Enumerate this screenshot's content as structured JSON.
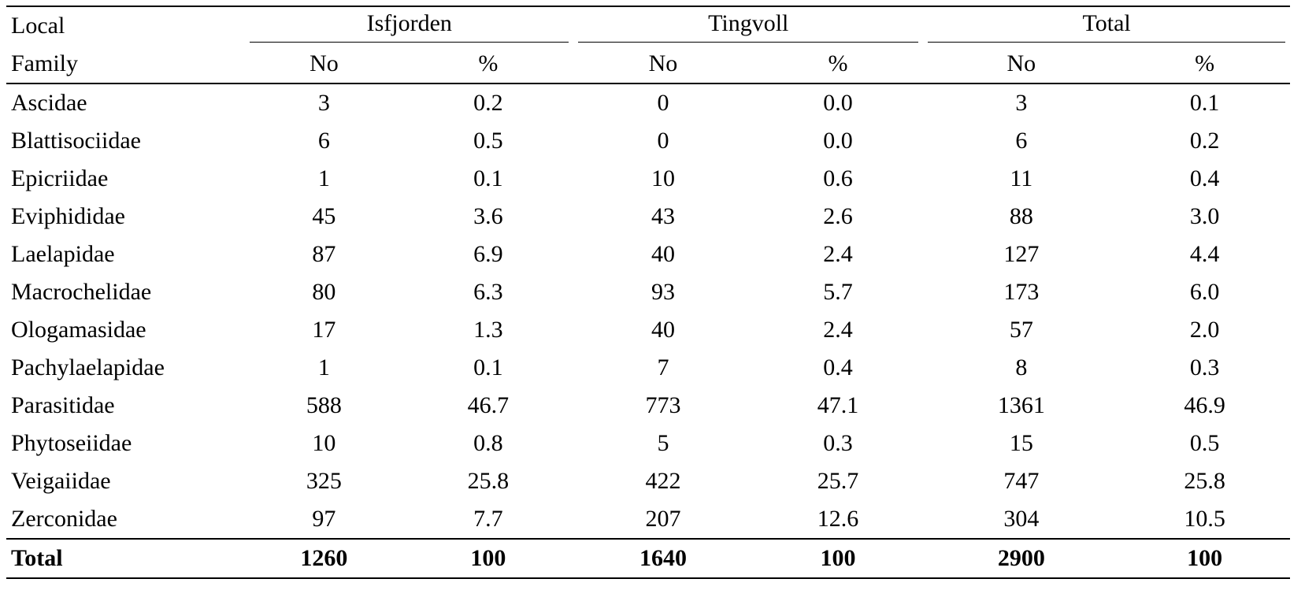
{
  "table": {
    "header": {
      "row_label_top": "Local",
      "row_label_bottom": "Family",
      "groups": [
        "Isfjorden",
        "Tingvoll",
        "Total"
      ],
      "subcolumns": [
        "No",
        "%",
        "No",
        "%",
        "No",
        "%"
      ]
    },
    "rows": [
      {
        "family": "Ascidae",
        "values": [
          "3",
          "0.2",
          "0",
          "0.0",
          "3",
          "0.1"
        ]
      },
      {
        "family": "Blattisociidae",
        "values": [
          "6",
          "0.5",
          "0",
          "0.0",
          "6",
          "0.2"
        ]
      },
      {
        "family": "Epicriidae",
        "values": [
          "1",
          "0.1",
          "10",
          "0.6",
          "11",
          "0.4"
        ]
      },
      {
        "family": "Eviphididae",
        "values": [
          "45",
          "3.6",
          "43",
          "2.6",
          "88",
          "3.0"
        ]
      },
      {
        "family": "Laelapidae",
        "values": [
          "87",
          "6.9",
          "40",
          "2.4",
          "127",
          "4.4"
        ]
      },
      {
        "family": "Macrochelidae",
        "values": [
          "80",
          "6.3",
          "93",
          "5.7",
          "173",
          "6.0"
        ]
      },
      {
        "family": "Ologamasidae",
        "values": [
          "17",
          "1.3",
          "40",
          "2.4",
          "57",
          "2.0"
        ]
      },
      {
        "family": "Pachylaelapidae",
        "values": [
          "1",
          "0.1",
          "7",
          "0.4",
          "8",
          "0.3"
        ]
      },
      {
        "family": "Parasitidae",
        "values": [
          "588",
          "46.7",
          "773",
          "47.1",
          "1361",
          "46.9"
        ]
      },
      {
        "family": "Phytoseiidae",
        "values": [
          "10",
          "0.8",
          "5",
          "0.3",
          "15",
          "0.5"
        ]
      },
      {
        "family": "Veigaiidae",
        "values": [
          "325",
          "25.8",
          "422",
          "25.7",
          "747",
          "25.8"
        ]
      },
      {
        "family": "Zerconidae",
        "values": [
          "97",
          "7.7",
          "207",
          "12.6",
          "304",
          "10.5"
        ]
      }
    ],
    "total": {
      "family": "Total",
      "values": [
        "1260",
        "100",
        "1640",
        "100",
        "2900",
        "100"
      ]
    }
  }
}
